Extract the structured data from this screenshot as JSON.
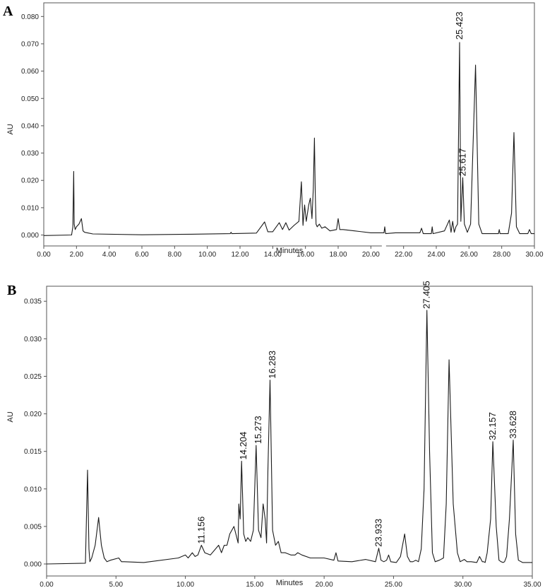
{
  "chart_data": [
    {
      "type": "line",
      "panel_label": "A",
      "xlabel": "Minutes",
      "ylabel": "AU",
      "xlim": [
        0,
        30
      ],
      "ylim": [
        -0.004,
        0.085
      ],
      "x_ticks": [
        "0.00",
        "2.00",
        "4.00",
        "6.00",
        "8.00",
        "10.00",
        "12.00",
        "14.00",
        "16.00",
        "18.00",
        "20.00",
        "22.00",
        "24.00",
        "26.00",
        "28.00",
        "30.00"
      ],
      "y_ticks": [
        "0.000",
        "0.010",
        "0.020",
        "0.030",
        "0.040",
        "0.050",
        "0.060",
        "0.070",
        "0.080"
      ],
      "grid": false,
      "peak_labels": [
        {
          "label": "25.423",
          "x": 25.423,
          "y": 0.071
        },
        {
          "label": "25.617",
          "x": 25.617,
          "y": 0.021
        }
      ],
      "series": [
        {
          "x": [
            0,
            1.7,
            1.78,
            1.83,
            1.86,
            1.92,
            2.0,
            2.15,
            2.3,
            2.4,
            2.5,
            3,
            6,
            9,
            11.4,
            11.45,
            11.5,
            13.0,
            13.5,
            13.7,
            14.0,
            14.4,
            14.6,
            14.8,
            15.0,
            15.3,
            15.6,
            15.75,
            15.85,
            15.95,
            16.05,
            16.2,
            16.3,
            16.4,
            16.48,
            16.55,
            16.6,
            16.65,
            16.72,
            16.85,
            17.0,
            17.2,
            17.5,
            17.9,
            18.0,
            18.1,
            18.3,
            19,
            20,
            20.8,
            20.85,
            20.9,
            21.5,
            22.5,
            23.0,
            23.1,
            23.2,
            23.7,
            23.75,
            23.8,
            24.5,
            24.8,
            24.9,
            25.0,
            25.1,
            25.2,
            25.3,
            25.423,
            25.5,
            25.617,
            25.72,
            25.9,
            26.1,
            26.4,
            26.6,
            26.8,
            27.0,
            27.8,
            27.85,
            27.9,
            28.4,
            28.6,
            28.75,
            28.9,
            29.1,
            29.6,
            29.7,
            29.8,
            30
          ],
          "y": [
            -0.0002,
            0.0,
            0.003,
            0.0233,
            0.004,
            0.002,
            0.003,
            0.004,
            0.006,
            0.0015,
            0.001,
            0.0004,
            0.0001,
            0.0003,
            0.0005,
            0.001,
            0.0005,
            0.0007,
            0.0048,
            0.0012,
            0.0012,
            0.0045,
            0.002,
            0.0045,
            0.0018,
            0.0035,
            0.005,
            0.0195,
            0.0035,
            0.011,
            0.005,
            0.011,
            0.0135,
            0.006,
            0.017,
            0.0355,
            0.015,
            0.004,
            0.003,
            0.004,
            0.0025,
            0.003,
            0.0015,
            0.002,
            0.006,
            0.002,
            0.002,
            0.0015,
            0.0008,
            0.0008,
            0.003,
            0.0005,
            0.0008,
            0.0008,
            0.0008,
            0.0025,
            0.0005,
            0.0005,
            0.003,
            0.0005,
            0.0015,
            0.0055,
            0.001,
            0.005,
            0.001,
            0.003,
            0.004,
            0.0705,
            0.005,
            0.021,
            0.004,
            0.001,
            0.004,
            0.0622,
            0.004,
            0.0005,
            0.0005,
            0.0005,
            0.002,
            0.0005,
            0.0005,
            0.008,
            0.0375,
            0.003,
            0.0005,
            0.0005,
            0.002,
            0.0005,
            0.0005
          ]
        }
      ]
    },
    {
      "type": "line",
      "panel_label": "B",
      "xlabel": "Minutes",
      "ylabel": "AU",
      "xlim": [
        0,
        35
      ],
      "ylim": [
        -0.0016,
        0.037
      ],
      "x_ticks": [
        "0.00",
        "5.00",
        "10.00",
        "15.00",
        "20.00",
        "25.00",
        "30.00",
        "35.00"
      ],
      "y_ticks": [
        "0.000",
        "0.005",
        "0.010",
        "0.015",
        "0.020",
        "0.025",
        "0.030",
        "0.035"
      ],
      "grid": false,
      "peak_labels": [
        {
          "label": "11.156",
          "x": 11.156,
          "y": 0.0025
        },
        {
          "label": "14.204",
          "x": 14.204,
          "y": 0.0137
        },
        {
          "label": "15.273",
          "x": 15.273,
          "y": 0.0158
        },
        {
          "label": "16.283",
          "x": 16.283,
          "y": 0.0245
        },
        {
          "label": "23.933",
          "x": 23.933,
          "y": 0.0021
        },
        {
          "label": "27.405",
          "x": 27.405,
          "y": 0.0338
        },
        {
          "label": "32.157",
          "x": 32.157,
          "y": 0.0163
        },
        {
          "label": "33.628",
          "x": 33.628,
          "y": 0.0165
        }
      ],
      "series": [
        {
          "x": [
            0,
            2.8,
            2.95,
            3.05,
            3.12,
            3.25,
            3.5,
            3.75,
            3.95,
            4.15,
            4.35,
            4.6,
            5.2,
            5.4,
            5.6,
            7,
            9.5,
            10.0,
            10.2,
            10.5,
            10.7,
            10.9,
            11.156,
            11.4,
            11.8,
            12.4,
            12.6,
            12.8,
            13.0,
            13.2,
            13.5,
            13.8,
            13.85,
            13.95,
            14.05,
            14.204,
            14.35,
            14.5,
            14.7,
            14.9,
            15.1,
            15.273,
            15.45,
            15.6,
            15.75,
            15.85,
            15.95,
            16.1,
            16.283,
            16.5,
            16.7,
            16.9,
            17.2,
            17.6,
            17.9,
            18.1,
            18.4,
            19,
            20,
            20.7,
            20.85,
            21.0,
            22,
            23.0,
            23.7,
            23.933,
            24.1,
            24.3,
            24.5,
            24.65,
            24.8,
            25.2,
            25.5,
            25.8,
            26.0,
            26.2,
            26.4,
            26.6,
            26.8,
            27.0,
            27.2,
            27.405,
            27.6,
            27.8,
            28.0,
            28.3,
            28.6,
            28.8,
            29.0,
            29.3,
            29.6,
            29.8,
            30.1,
            30.3,
            30.6,
            31.0,
            31.2,
            31.4,
            31.5,
            31.6,
            31.75,
            32.0,
            32.157,
            32.4,
            32.6,
            32.75,
            32.9,
            33.0,
            33.15,
            33.35,
            33.628,
            33.8,
            34.0,
            34.3,
            35
          ],
          "y": [
            0.0,
            0.0001,
            0.0125,
            0.002,
            0.0003,
            0.0008,
            0.0025,
            0.0062,
            0.0025,
            0.0008,
            0.0003,
            0.0005,
            0.0008,
            0.0003,
            0.0003,
            0.0002,
            0.0008,
            0.0012,
            0.0008,
            0.0015,
            0.001,
            0.0012,
            0.0025,
            0.0015,
            0.0012,
            0.0025,
            0.0015,
            0.0025,
            0.0025,
            0.004,
            0.005,
            0.0028,
            0.008,
            0.006,
            0.0137,
            0.004,
            0.003,
            0.0035,
            0.003,
            0.0045,
            0.0158,
            0.0045,
            0.0035,
            0.008,
            0.006,
            0.0028,
            0.0125,
            0.0245,
            0.0045,
            0.0025,
            0.003,
            0.0015,
            0.0015,
            0.0012,
            0.0012,
            0.0015,
            0.0012,
            0.0008,
            0.0008,
            0.0005,
            0.0015,
            0.0004,
            0.0003,
            0.0006,
            0.0003,
            0.0021,
            0.0005,
            0.0003,
            0.0005,
            0.0012,
            0.0003,
            0.0002,
            0.001,
            0.004,
            0.001,
            0.0003,
            0.0003,
            0.0005,
            0.0003,
            0.002,
            0.01,
            0.0338,
            0.015,
            0.0015,
            0.0003,
            0.0005,
            0.0008,
            0.008,
            0.0272,
            0.008,
            0.0015,
            0.0003,
            0.0006,
            0.0003,
            0.0003,
            0.0002,
            0.001,
            0.0003,
            0.0003,
            0.0002,
            0.0015,
            0.006,
            0.0163,
            0.005,
            0.0005,
            0.0003,
            0.0002,
            0.0003,
            0.001,
            0.006,
            0.0165,
            0.004,
            0.0005,
            0.0002,
            0.0002
          ]
        }
      ]
    }
  ]
}
